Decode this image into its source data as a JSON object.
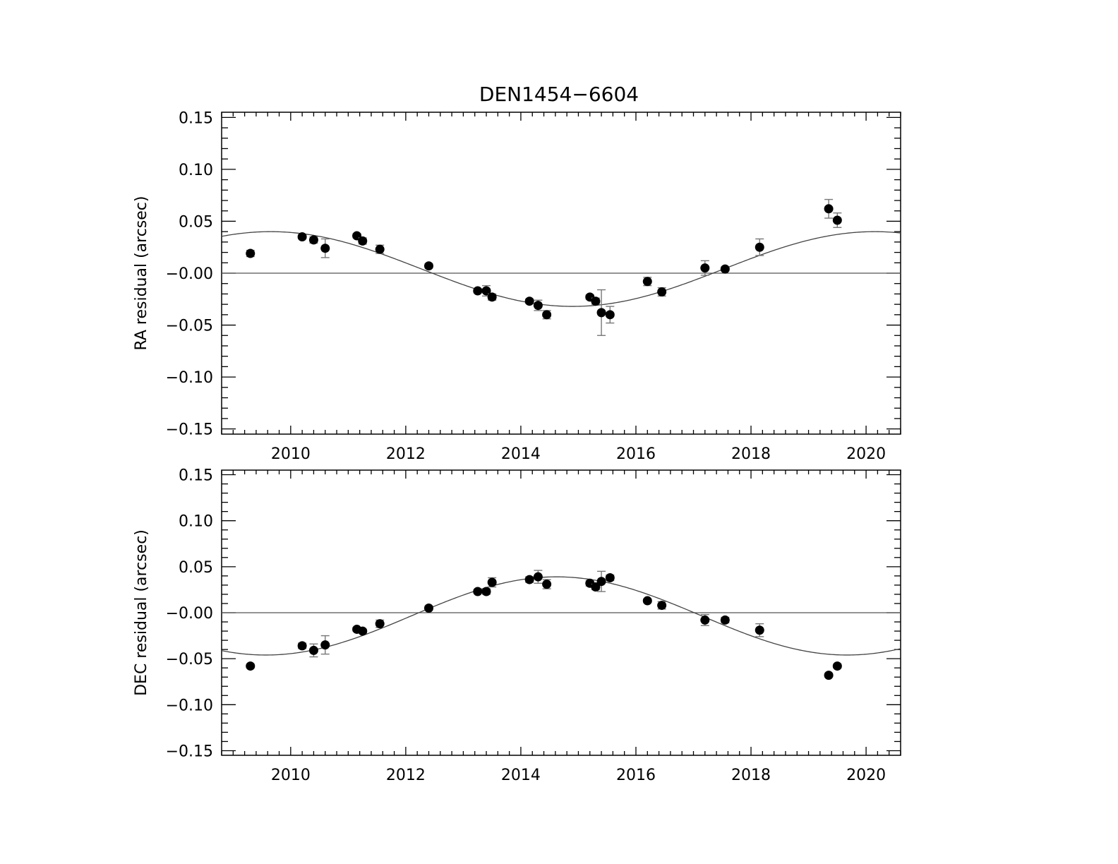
{
  "title": "DEN1454−6604",
  "chart_data": [
    {
      "type": "scatter",
      "ylabel": "RA residual (arcsec)",
      "xlabel": "",
      "xlim": [
        2008.8,
        2020.6
      ],
      "ylim": [
        -0.155,
        0.155
      ],
      "xticks": [
        2010,
        2012,
        2014,
        2016,
        2018,
        2020
      ],
      "xtick_labels": [
        "2010",
        "2012",
        "2014",
        "2016",
        "2018",
        "2020"
      ],
      "yticks": [
        0.15,
        0.1,
        0.05,
        0.0,
        -0.05,
        -0.1,
        -0.15
      ],
      "ytick_labels": [
        "0.15",
        "0.10",
        "0.05",
        "−0.00",
        "−0.05",
        "−0.10",
        "−0.15"
      ],
      "model": {
        "amplitude": 0.036,
        "offset": 0.004,
        "period": 10.5,
        "phase_peak": 2009.65
      },
      "points": [
        {
          "x": 2009.3,
          "y": 0.019,
          "err": 0.003
        },
        {
          "x": 2010.2,
          "y": 0.035,
          "err": 0.002
        },
        {
          "x": 2010.4,
          "y": 0.032,
          "err": 0.003
        },
        {
          "x": 2010.6,
          "y": 0.024,
          "err": 0.009
        },
        {
          "x": 2011.15,
          "y": 0.036,
          "err": 0.002
        },
        {
          "x": 2011.25,
          "y": 0.031,
          "err": 0.003
        },
        {
          "x": 2011.55,
          "y": 0.023,
          "err": 0.004
        },
        {
          "x": 2012.4,
          "y": 0.007,
          "err": 0.002
        },
        {
          "x": 2013.25,
          "y": -0.017,
          "err": 0.002
        },
        {
          "x": 2013.4,
          "y": -0.017,
          "err": 0.005
        },
        {
          "x": 2013.5,
          "y": -0.023,
          "err": 0.003
        },
        {
          "x": 2014.15,
          "y": -0.027,
          "err": 0.002
        },
        {
          "x": 2014.3,
          "y": -0.031,
          "err": 0.005
        },
        {
          "x": 2014.45,
          "y": -0.04,
          "err": 0.004
        },
        {
          "x": 2015.2,
          "y": -0.023,
          "err": 0.002
        },
        {
          "x": 2015.3,
          "y": -0.027,
          "err": 0.003
        },
        {
          "x": 2015.4,
          "y": -0.038,
          "err": 0.022
        },
        {
          "x": 2015.55,
          "y": -0.04,
          "err": 0.008
        },
        {
          "x": 2016.2,
          "y": -0.008,
          "err": 0.004
        },
        {
          "x": 2016.45,
          "y": -0.018,
          "err": 0.004
        },
        {
          "x": 2017.2,
          "y": 0.005,
          "err": 0.007
        },
        {
          "x": 2017.55,
          "y": 0.004,
          "err": 0.002
        },
        {
          "x": 2018.15,
          "y": 0.025,
          "err": 0.008
        },
        {
          "x": 2019.35,
          "y": 0.062,
          "err": 0.009
        },
        {
          "x": 2019.5,
          "y": 0.051,
          "err": 0.007
        }
      ]
    },
    {
      "type": "scatter",
      "ylabel": "DEC residual (arcsec)",
      "xlabel": "",
      "xlim": [
        2008.8,
        2020.6
      ],
      "ylim": [
        -0.155,
        0.155
      ],
      "xticks": [
        2010,
        2012,
        2014,
        2016,
        2018,
        2020
      ],
      "xtick_labels": [
        "2010",
        "2012",
        "2014",
        "2016",
        "2018",
        "2020"
      ],
      "yticks": [
        0.15,
        0.1,
        0.05,
        0.0,
        -0.05,
        -0.1,
        -0.15
      ],
      "ytick_labels": [
        "0.15",
        "0.10",
        "0.05",
        "−0.00",
        "−0.05",
        "−0.10",
        "−0.15"
      ],
      "model": {
        "amplitude": 0.0425,
        "offset": -0.0035,
        "period": 10.1,
        "phase_peak": 2014.62
      },
      "points": [
        {
          "x": 2009.3,
          "y": -0.058,
          "err": 0.002
        },
        {
          "x": 2010.2,
          "y": -0.036,
          "err": 0.003
        },
        {
          "x": 2010.4,
          "y": -0.041,
          "err": 0.007
        },
        {
          "x": 2010.6,
          "y": -0.035,
          "err": 0.01
        },
        {
          "x": 2011.15,
          "y": -0.018,
          "err": 0.002
        },
        {
          "x": 2011.25,
          "y": -0.02,
          "err": 0.002
        },
        {
          "x": 2011.55,
          "y": -0.012,
          "err": 0.004
        },
        {
          "x": 2012.4,
          "y": 0.005,
          "err": 0.002
        },
        {
          "x": 2013.25,
          "y": 0.023,
          "err": 0.002
        },
        {
          "x": 2013.4,
          "y": 0.023,
          "err": 0.003
        },
        {
          "x": 2013.5,
          "y": 0.033,
          "err": 0.005
        },
        {
          "x": 2014.15,
          "y": 0.036,
          "err": 0.003
        },
        {
          "x": 2014.3,
          "y": 0.039,
          "err": 0.007
        },
        {
          "x": 2014.45,
          "y": 0.031,
          "err": 0.005
        },
        {
          "x": 2015.2,
          "y": 0.032,
          "err": 0.003
        },
        {
          "x": 2015.3,
          "y": 0.028,
          "err": 0.003
        },
        {
          "x": 2015.4,
          "y": 0.034,
          "err": 0.011
        },
        {
          "x": 2015.55,
          "y": 0.038,
          "err": 0.003
        },
        {
          "x": 2016.2,
          "y": 0.013,
          "err": 0.002
        },
        {
          "x": 2016.45,
          "y": 0.008,
          "err": 0.004
        },
        {
          "x": 2017.2,
          "y": -0.008,
          "err": 0.006
        },
        {
          "x": 2017.55,
          "y": -0.008,
          "err": 0.003
        },
        {
          "x": 2018.15,
          "y": -0.019,
          "err": 0.007
        },
        {
          "x": 2019.35,
          "y": -0.068,
          "err": 0.002
        },
        {
          "x": 2019.5,
          "y": -0.058,
          "err": 0.002
        }
      ]
    }
  ]
}
